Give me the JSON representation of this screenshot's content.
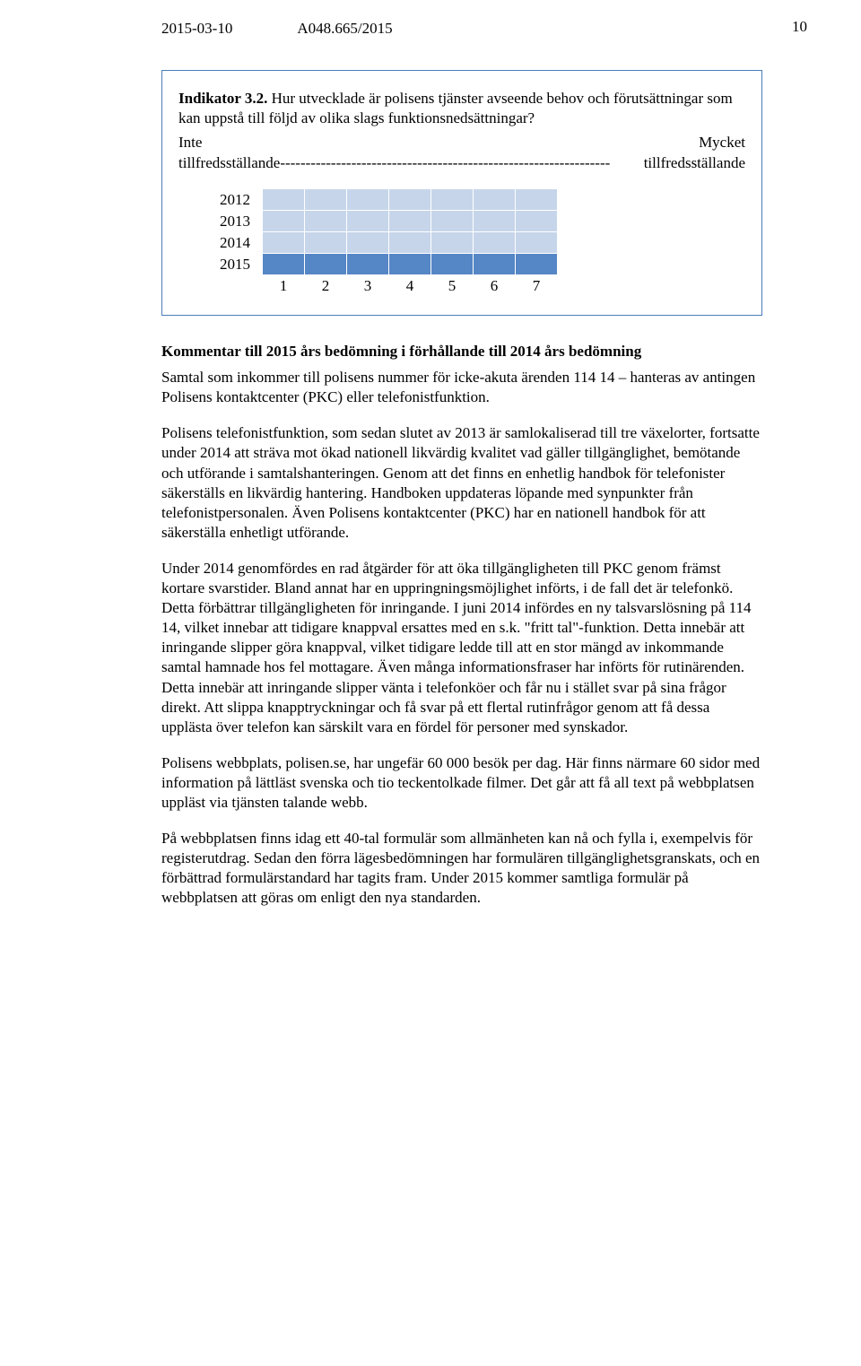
{
  "page_number": "10",
  "header": {
    "date": "2015-03-10",
    "ref": "A048.665/2015"
  },
  "indicator_box": {
    "title_label": "Indikator 3.2.",
    "title_text": "Hur utvecklade är polisens tjänster avseende behov och förutsättningar som kan uppstå till följd av olika slags funktionsnedsättningar?",
    "scale_left": "Inte",
    "scale_right": "Mycket",
    "scale_footer_left": "tillfredsställande",
    "scale_footer_right": "tillfredsställande",
    "years": [
      "2012",
      "2013",
      "2014",
      "2015"
    ],
    "columns": [
      "1",
      "2",
      "3",
      "4",
      "5",
      "6",
      "7"
    ],
    "row_color_light": "#c6d5ea",
    "row_color_dark": "#5586c5",
    "cell_bg_plain": "#ffffff"
  },
  "section_heading": "Kommentar till 2015 års bedömning i förhållande till 2014 års bedömning",
  "paragraphs": {
    "p1": "Samtal som inkommer till polisens nummer för icke-akuta ärenden 114 14 – hanteras av antingen Polisens kontaktcenter (PKC) eller telefonistfunktion.",
    "p2": "Polisens telefonistfunktion, som sedan slutet av 2013 är samlokaliserad till tre växelorter, fortsatte under 2014 att sträva mot ökad nationell likvärdig kvalitet vad gäller tillgänglighet, bemötande och utförande i samtalshanteringen. Genom att det finns en enhetlig handbok för telefonister säkerställs en likvärdig hantering. Handboken uppdateras löpande med synpunkter från telefonistpersonalen. Även Polisens kontaktcenter (PKC) har en nationell handbok för att säkerställa enhetligt utförande.",
    "p3": "Under 2014 genomfördes en rad åtgärder för att öka tillgängligheten till PKC genom främst kortare svarstider. Bland annat har en uppringningsmöjlighet införts, i de fall det är telefonkö. Detta förbättrar tillgängligheten för inringande. I juni 2014 infördes en ny talsvarslösning på 114 14, vilket innebar att tidigare knappval ersattes med en s.k. \"fritt tal\"-funktion. Detta innebär att inringande slipper göra knappval, vilket tidigare ledde till att en stor mängd av inkommande samtal hamnade hos fel mottagare. Även många informationsfraser har införts för rutinärenden. Detta innebär att inringande slipper vänta i telefonköer och får nu i stället svar på sina frågor direkt. Att slippa knapptryckningar och få svar på ett flertal rutinfrågor genom att få dessa upplästa över telefon kan särskilt vara en fördel för personer med synskador.",
    "p4": "Polisens webbplats, polisen.se, har ungefär 60 000 besök per dag. Här finns närmare 60 sidor med information på lättläst svenska och tio teckentolkade filmer. Det går att få all text på webbplatsen uppläst via tjänsten talande webb.",
    "p5": "På webbplatsen finns idag ett 40-tal formulär som allmänheten kan nå och fylla i, exempelvis för registerutdrag. Sedan den förra lägesbedömningen har formulären tillgänglighetsgranskats, och en förbättrad formulärstandard har tagits fram. Under 2015 kommer samtliga formulär på webbplatsen att göras om enligt den nya standarden."
  }
}
